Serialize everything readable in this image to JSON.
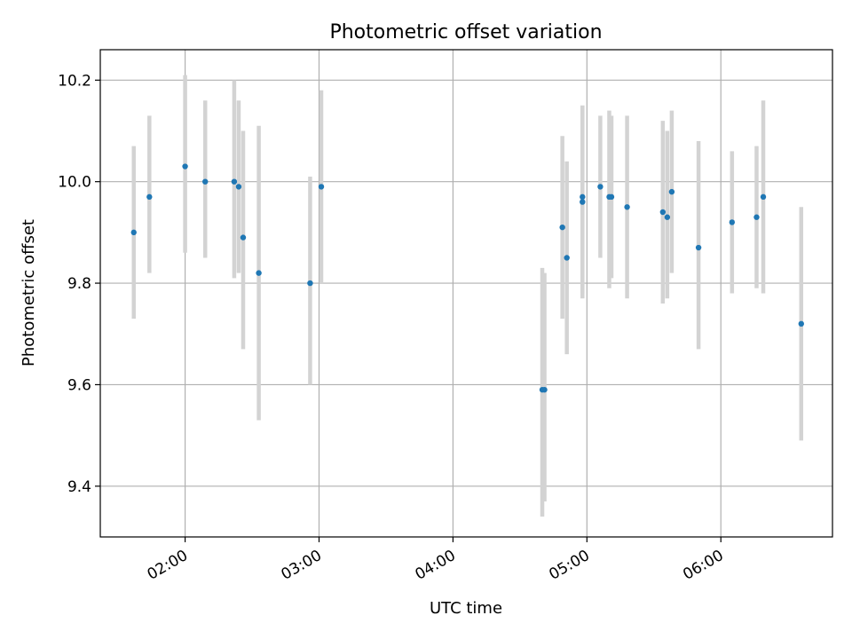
{
  "chart_data": {
    "type": "scatter",
    "title": "Photometric offset variation",
    "xlabel": "UTC time",
    "ylabel": "Photometric offset",
    "x_axis_type": "time",
    "xlim": [
      "01:22",
      "06:50"
    ],
    "ylim": [
      9.3,
      10.26
    ],
    "xticks": [
      "02:00",
      "03:00",
      "04:00",
      "05:00",
      "06:00"
    ],
    "yticks": [
      9.4,
      9.6,
      9.8,
      10.0,
      10.2
    ],
    "grid": true,
    "legend": "none",
    "colors": {
      "marker": "#1f77b4",
      "errorbar": "#d3d3d3",
      "grid": "#b0b0b0"
    },
    "series": [
      {
        "points": [
          {
            "x": "01:37",
            "y": 9.9,
            "ylow": 9.73,
            "yhigh": 10.07
          },
          {
            "x": "01:44",
            "y": 9.97,
            "ylow": 9.82,
            "yhigh": 10.13
          },
          {
            "x": "02:00",
            "y": 10.03,
            "ylow": 9.86,
            "yhigh": 10.21
          },
          {
            "x": "02:09",
            "y": 10.0,
            "ylow": 9.85,
            "yhigh": 10.16
          },
          {
            "x": "02:22",
            "y": 10.0,
            "ylow": 9.81,
            "yhigh": 10.2
          },
          {
            "x": "02:24",
            "y": 9.99,
            "ylow": 9.82,
            "yhigh": 10.16
          },
          {
            "x": "02:26",
            "y": 9.89,
            "ylow": 9.67,
            "yhigh": 10.1
          },
          {
            "x": "02:33",
            "y": 9.82,
            "ylow": 9.53,
            "yhigh": 10.11
          },
          {
            "x": "02:56",
            "y": 9.8,
            "ylow": 9.6,
            "yhigh": 10.01
          },
          {
            "x": "03:01",
            "y": 9.99,
            "ylow": 9.8,
            "yhigh": 10.18
          },
          {
            "x": "04:40",
            "y": 9.59,
            "ylow": 9.34,
            "yhigh": 9.83
          },
          {
            "x": "04:41",
            "y": 9.59,
            "ylow": 9.37,
            "yhigh": 9.82
          },
          {
            "x": "04:49",
            "y": 9.91,
            "ylow": 9.73,
            "yhigh": 10.09
          },
          {
            "x": "04:51",
            "y": 9.85,
            "ylow": 9.66,
            "yhigh": 10.04
          },
          {
            "x": "04:58",
            "y": 9.97,
            "ylow": 9.78,
            "yhigh": 10.15
          },
          {
            "x": "04:58",
            "y": 9.96,
            "ylow": 9.77,
            "yhigh": 10.15
          },
          {
            "x": "05:06",
            "y": 9.99,
            "ylow": 9.85,
            "yhigh": 10.13
          },
          {
            "x": "05:10",
            "y": 9.97,
            "ylow": 9.79,
            "yhigh": 10.14
          },
          {
            "x": "05:11",
            "y": 9.97,
            "ylow": 9.81,
            "yhigh": 10.13
          },
          {
            "x": "05:18",
            "y": 9.95,
            "ylow": 9.77,
            "yhigh": 10.13
          },
          {
            "x": "05:34",
            "y": 9.94,
            "ylow": 9.76,
            "yhigh": 10.12
          },
          {
            "x": "05:36",
            "y": 9.93,
            "ylow": 9.77,
            "yhigh": 10.1
          },
          {
            "x": "05:38",
            "y": 9.98,
            "ylow": 9.82,
            "yhigh": 10.14
          },
          {
            "x": "05:50",
            "y": 9.87,
            "ylow": 9.67,
            "yhigh": 10.08
          },
          {
            "x": "06:05",
            "y": 9.92,
            "ylow": 9.78,
            "yhigh": 10.06
          },
          {
            "x": "06:16",
            "y": 9.93,
            "ylow": 9.79,
            "yhigh": 10.07
          },
          {
            "x": "06:19",
            "y": 9.97,
            "ylow": 9.78,
            "yhigh": 10.16
          },
          {
            "x": "06:36",
            "y": 9.72,
            "ylow": 9.49,
            "yhigh": 9.95
          }
        ]
      }
    ]
  }
}
